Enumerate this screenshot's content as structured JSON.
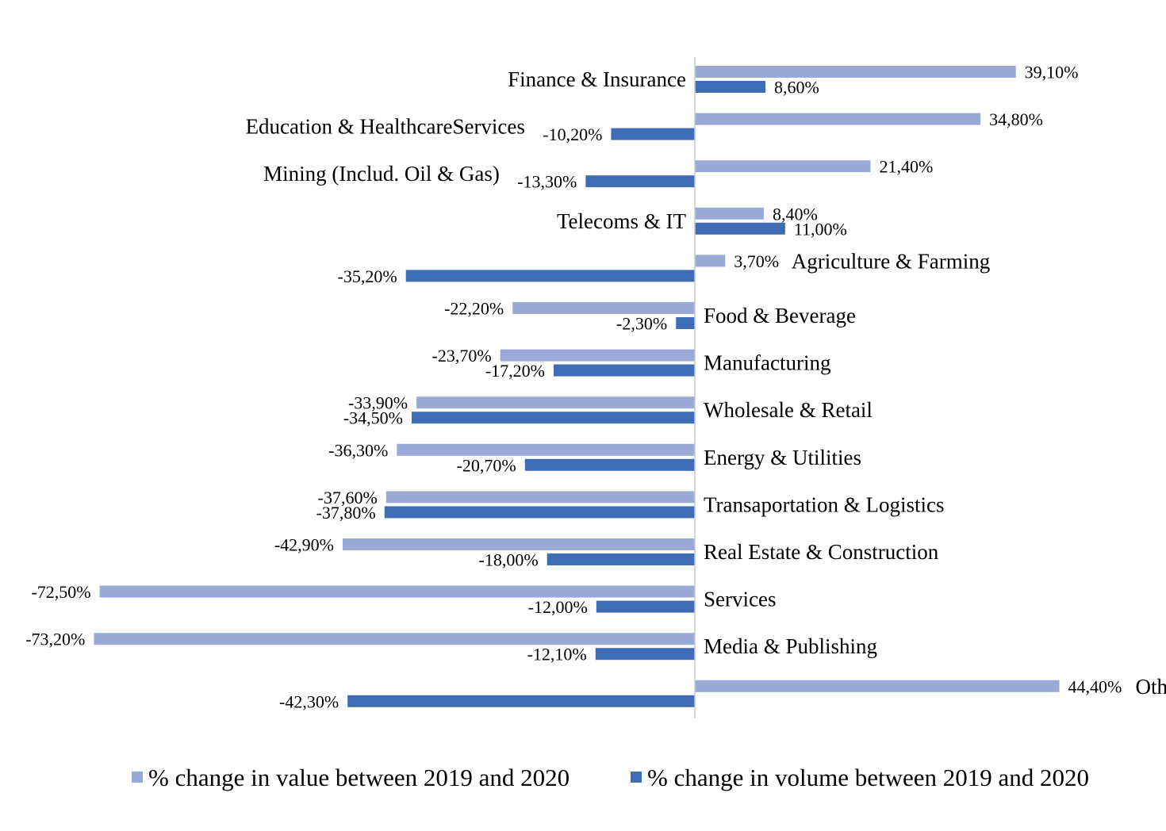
{
  "chart_data": {
    "type": "bar",
    "orientation": "horizontal",
    "title": "",
    "xlabel": "",
    "ylabel": "",
    "xlim": [
      -75,
      45
    ],
    "grid": false,
    "legend_position": "bottom",
    "categories": [
      "Finance & Insurance",
      "Education & HealthcareServices",
      "Mining (Includ. Oil & Gas)",
      "Telecoms & IT",
      "Agriculture & Farming",
      "Food & Beverage",
      "Manufacturing",
      "Wholesale & Retail",
      "Energy & Utilities",
      "Transaportation & Logistics",
      "Real Estate & Construction",
      "Services",
      "Media & Publishing",
      "Others"
    ],
    "series": [
      {
        "name": "% change in value between 2019 and 2020",
        "color": "#9aa9d6",
        "values": [
          39.1,
          34.8,
          21.4,
          8.4,
          3.7,
          -22.2,
          -23.7,
          -33.9,
          -36.3,
          -37.6,
          -42.9,
          -72.5,
          -73.2,
          44.4
        ],
        "labels": [
          "39,10%",
          "34,80%",
          "21,40%",
          "8,40%",
          "3,70%",
          "-22,20%",
          "-23,70%",
          "-33,90%",
          "-36,30%",
          "-37,60%",
          "-42,90%",
          "-72,50%",
          "-73,20%",
          "44,40%"
        ]
      },
      {
        "name": "% change in volume between 2019 and 2020",
        "color": "#3f6db5",
        "values": [
          8.6,
          -10.2,
          -13.3,
          11.0,
          -35.2,
          -2.3,
          -17.2,
          -34.5,
          -20.7,
          -37.8,
          -18.0,
          -12.0,
          -12.1,
          -42.3
        ],
        "labels": [
          "8,60%",
          "-10,20%",
          "-13,30%",
          "11,00%",
          "-35,20%",
          "-2,30%",
          "-17,20%",
          "-34,50%",
          "-20,70%",
          "-37,80%",
          "-18,00%",
          "-12,00%",
          "-12,10%",
          "-42,30%"
        ]
      }
    ]
  }
}
